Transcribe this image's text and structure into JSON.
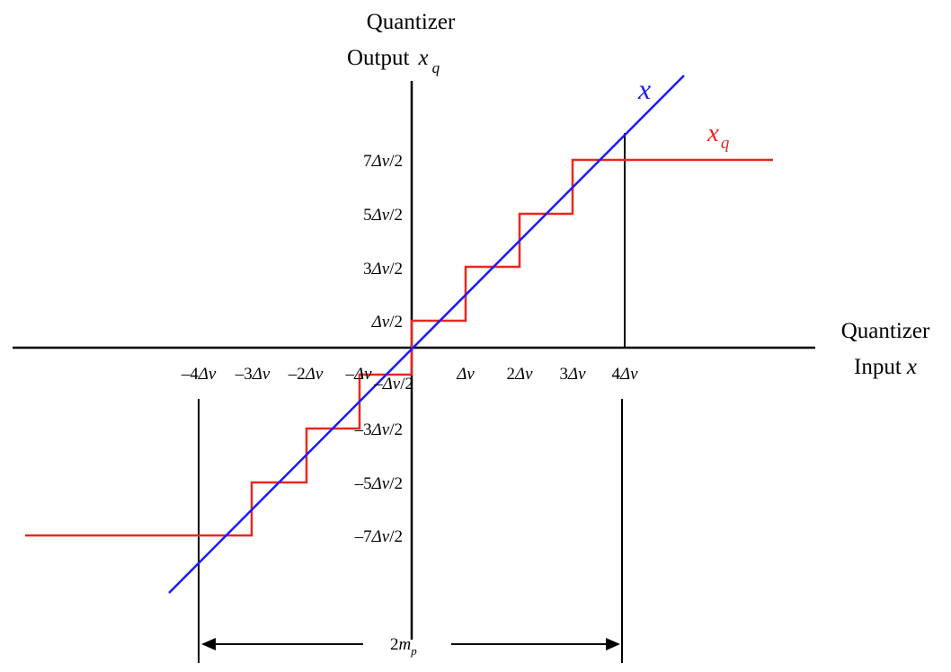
{
  "y_axis_title": {
    "line1": "Quantizer",
    "line2": "Output",
    "var": "x",
    "sub": "q"
  },
  "x_axis_title": {
    "line1": "Quantizer",
    "line2": "Input",
    "var": "x"
  },
  "series": {
    "x": {
      "label": "x",
      "color": "#1a1aff"
    },
    "xq": {
      "label": "x",
      "sub": "q",
      "color": "#e8281e"
    }
  },
  "y_ticks": [
    {
      "coef": "7",
      "sym": "Δ",
      "var": "v",
      "den": "/2"
    },
    {
      "coef": "5",
      "sym": "Δ",
      "var": "v",
      "den": "/2"
    },
    {
      "coef": "3",
      "sym": "Δ",
      "var": "v",
      "den": "/2"
    },
    {
      "coef": "",
      "sym": "Δ",
      "var": "v",
      "den": "/2"
    },
    {
      "coef": "–",
      "sym": "Δ",
      "var": "v",
      "den": "/2"
    },
    {
      "coef": "–3",
      "sym": "Δ",
      "var": "v",
      "den": "/2"
    },
    {
      "coef": "–5",
      "sym": "Δ",
      "var": "v",
      "den": "/2"
    },
    {
      "coef": "–7",
      "sym": "Δ",
      "var": "v",
      "den": "/2"
    }
  ],
  "x_ticks": [
    {
      "coef": "–4",
      "sym": "Δ",
      "var": "v"
    },
    {
      "coef": "–3",
      "sym": "Δ",
      "var": "v"
    },
    {
      "coef": "–2",
      "sym": "Δ",
      "var": "v"
    },
    {
      "coef": "–",
      "sym": "Δ",
      "var": "v"
    },
    {
      "coef": "",
      "sym": "Δ",
      "var": "v"
    },
    {
      "coef": "2",
      "sym": "Δ",
      "var": "v"
    },
    {
      "coef": "3",
      "sym": "Δ",
      "var": "v"
    },
    {
      "coef": "4",
      "sym": "Δ",
      "var": "v"
    }
  ],
  "range_label": {
    "coef": "2",
    "var": "m",
    "sub": "p"
  }
}
